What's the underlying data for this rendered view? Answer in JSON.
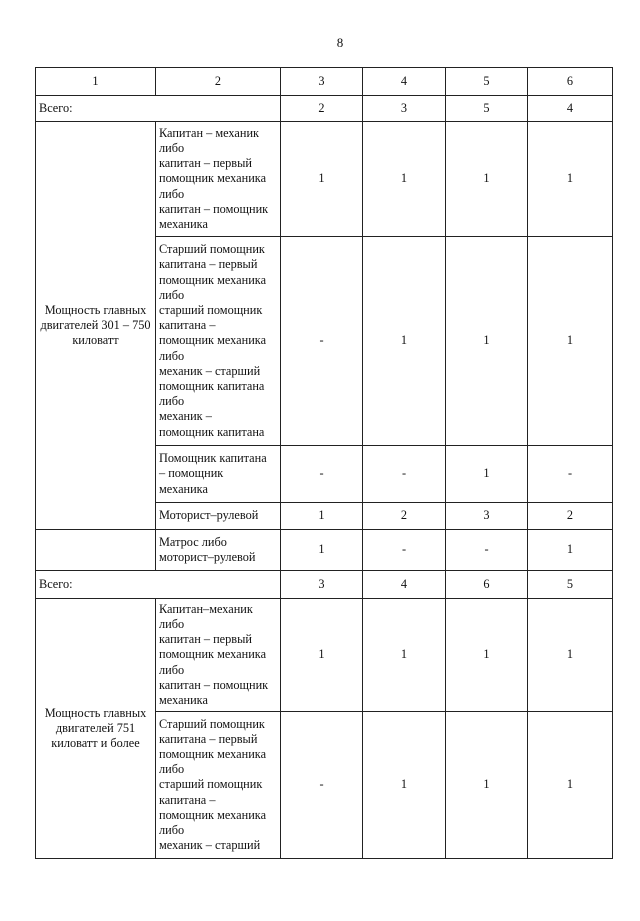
{
  "page_number": "8",
  "table": {
    "header": [
      "1",
      "2",
      "3",
      "4",
      "5",
      "6"
    ],
    "total_label": "Всего:",
    "total_1": [
      "2",
      "3",
      "5",
      "4"
    ],
    "group_1": {
      "category": "Мощность главных двигателей 301 – 750 киловатт",
      "rows": [
        {
          "position": "Капитан – механик\nлибо\nкапитан – первый\nпомощник механика\nлибо\nкапитан – помощник\nмеханика",
          "values": [
            "1",
            "1",
            "1",
            "1"
          ]
        },
        {
          "position": "Старший помощник\nкапитана – первый\nпомощник механика\nлибо\nстарший помощник\nкапитана –\nпомощник механика\nлибо\nмеханик – старший\nпомощник капитана\nлибо\nмеханик –\nпомощник капитана",
          "values": [
            "-",
            "1",
            "1",
            "1"
          ]
        },
        {
          "position": "Помощник капитана\n– помощник\nмеханика",
          "values": [
            "-",
            "-",
            "1",
            "-"
          ]
        },
        {
          "position": "Моторист–рулевой",
          "values": [
            "1",
            "2",
            "3",
            "2"
          ]
        }
      ]
    },
    "extra_row": {
      "category": "",
      "position": "Матрос либо\nмоторист–рулевой",
      "values": [
        "1",
        "-",
        "-",
        "1"
      ]
    },
    "total_2": [
      "3",
      "4",
      "6",
      "5"
    ],
    "group_2": {
      "category": "Мощность главных двигателей 751 киловатт и более",
      "rows": [
        {
          "position": "Капитан–механик\nлибо\nкапитан – первый\nпомощник механика\nлибо\nкапитан – помощник\nмеханика",
          "values": [
            "1",
            "1",
            "1",
            "1"
          ]
        },
        {
          "position": "Старший помощник\nкапитана – первый\nпомощник механика\nлибо\nстарший помощник\nкапитана –\nпомощник механика\nлибо\nмеханик – старший",
          "values": [
            "-",
            "1",
            "1",
            "1"
          ]
        }
      ]
    }
  }
}
